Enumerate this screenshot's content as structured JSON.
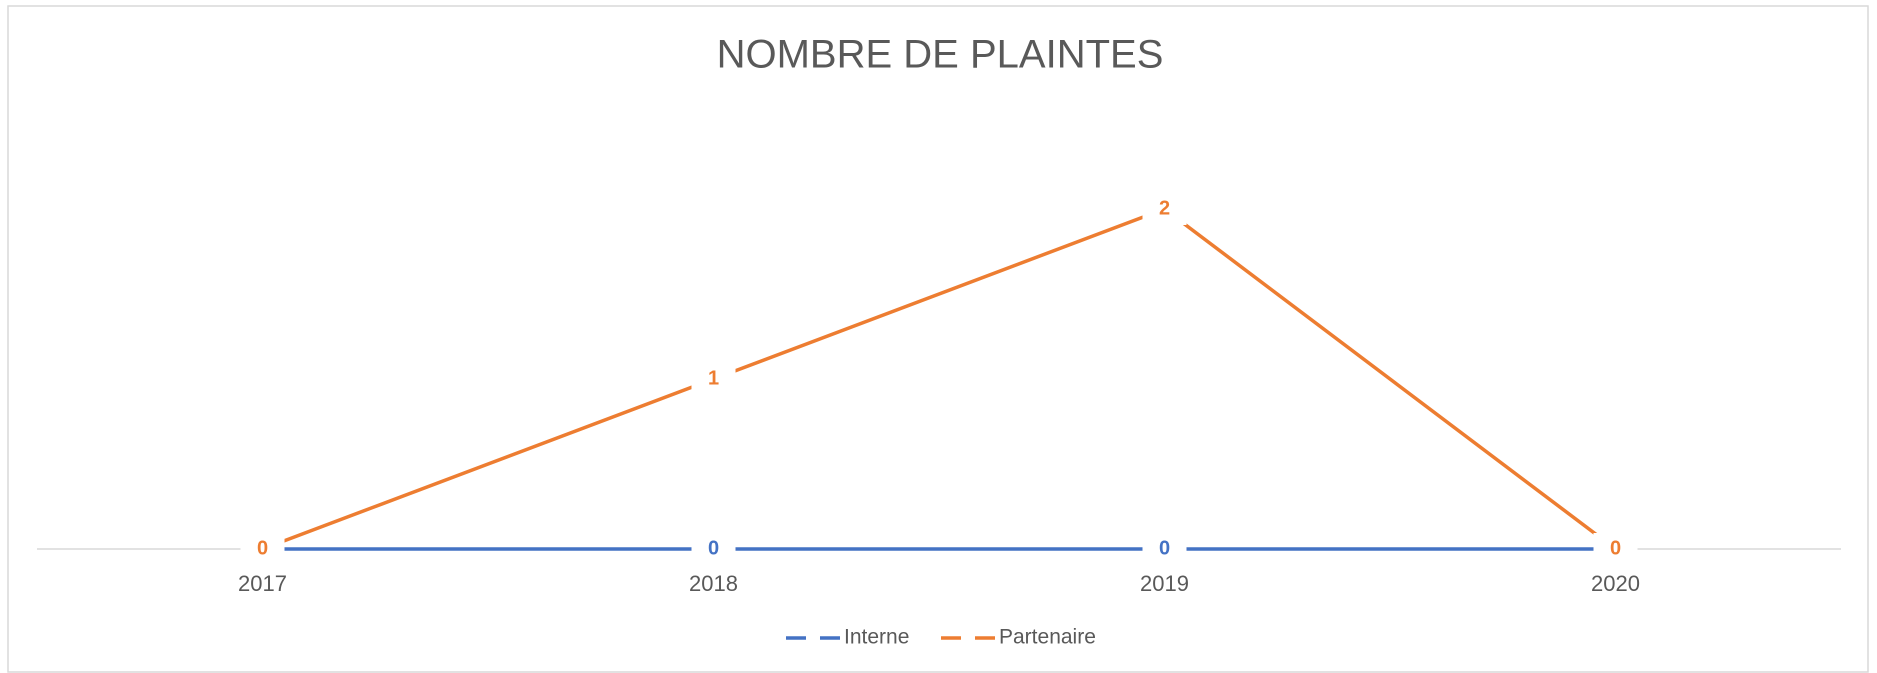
{
  "chart_data": {
    "type": "line",
    "title": "NOMBRE DE PLAINTES",
    "categories": [
      "2017",
      "2018",
      "2019",
      "2020"
    ],
    "series": [
      {
        "name": "Interne",
        "color": "#4472c4",
        "values": [
          0,
          0,
          0,
          0
        ]
      },
      {
        "name": "Partenaire",
        "color": "#ed7d31",
        "values": [
          0,
          1,
          2,
          0
        ]
      }
    ],
    "ylim": [
      0,
      2
    ],
    "legend": "bottom",
    "data_labels": true
  }
}
